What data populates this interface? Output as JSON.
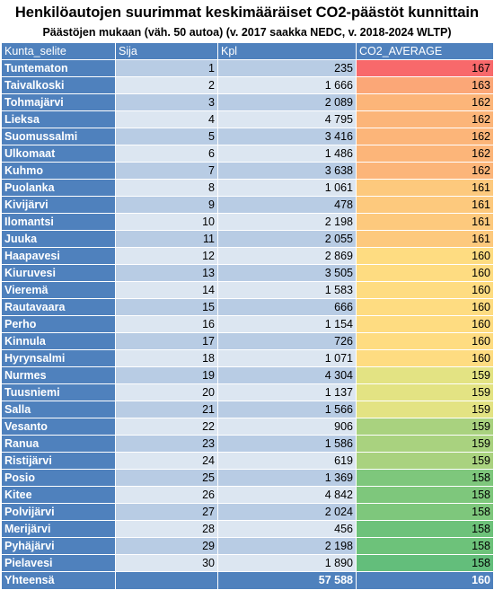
{
  "title": "Henkilöautojen suurimmat keskimääräiset CO2-päästöt kunnittain",
  "subtitle": "Päästöjen mukaan (väh. 50 autoa) (v. 2017 saakka NEDC, v. 2018-2024 WLTP)",
  "columns": [
    "Kunta_selite",
    "Sija",
    "Kpl",
    "CO2_AVERAGE"
  ],
  "colors": {
    "header": "#4f81bd",
    "band_dark": "#b8cce4",
    "band_light": "#dce6f1"
  },
  "rows": [
    {
      "name": "Tuntematon",
      "rank": "1",
      "count": "235",
      "avg": "167",
      "color": "#f8696b"
    },
    {
      "name": "Taivalkoski",
      "rank": "2",
      "count": "1 666",
      "avg": "163",
      "color": "#fba777"
    },
    {
      "name": "Tohmajärvi",
      "rank": "3",
      "count": "2 089",
      "avg": "162",
      "color": "#fcb579"
    },
    {
      "name": "Lieksa",
      "rank": "4",
      "count": "4 795",
      "avg": "162",
      "color": "#fcb579"
    },
    {
      "name": "Suomussalmi",
      "rank": "5",
      "count": "3 416",
      "avg": "162",
      "color": "#fcb579"
    },
    {
      "name": "Ulkomaat",
      "rank": "6",
      "count": "1 486",
      "avg": "162",
      "color": "#fcb579"
    },
    {
      "name": "Kuhmo",
      "rank": "7",
      "count": "3 638",
      "avg": "162",
      "color": "#fcb579"
    },
    {
      "name": "Puolanka",
      "rank": "8",
      "count": "1 061",
      "avg": "161",
      "color": "#fdc97d"
    },
    {
      "name": "Kivijärvi",
      "rank": "9",
      "count": "478",
      "avg": "161",
      "color": "#fdc97d"
    },
    {
      "name": "Ilomantsi",
      "rank": "10",
      "count": "2 198",
      "avg": "161",
      "color": "#fdc97d"
    },
    {
      "name": "Juuka",
      "rank": "11",
      "count": "2 055",
      "avg": "161",
      "color": "#fdc97d"
    },
    {
      "name": "Haapavesi",
      "rank": "12",
      "count": "2 869",
      "avg": "160",
      "color": "#fedc81"
    },
    {
      "name": "Kiuruvesi",
      "rank": "13",
      "count": "3 505",
      "avg": "160",
      "color": "#fedc81"
    },
    {
      "name": "Vieremä",
      "rank": "14",
      "count": "1 583",
      "avg": "160",
      "color": "#fedc81"
    },
    {
      "name": "Rautavaara",
      "rank": "15",
      "count": "666",
      "avg": "160",
      "color": "#fedc81"
    },
    {
      "name": "Perho",
      "rank": "16",
      "count": "1 154",
      "avg": "160",
      "color": "#fedc81"
    },
    {
      "name": "Kinnula",
      "rank": "17",
      "count": "726",
      "avg": "160",
      "color": "#fedc81"
    },
    {
      "name": "Hyrynsalmi",
      "rank": "18",
      "count": "1 071",
      "avg": "160",
      "color": "#fedc81"
    },
    {
      "name": "Nurmes",
      "rank": "19",
      "count": "4 304",
      "avg": "159",
      "color": "#e3e383"
    },
    {
      "name": "Tuusniemi",
      "rank": "20",
      "count": "1 137",
      "avg": "159",
      "color": "#e3e383"
    },
    {
      "name": "Salla",
      "rank": "21",
      "count": "1 566",
      "avg": "159",
      "color": "#e3e383"
    },
    {
      "name": "Vesanto",
      "rank": "22",
      "count": "906",
      "avg": "159",
      "color": "#a9d27f"
    },
    {
      "name": "Ranua",
      "rank": "23",
      "count": "1 586",
      "avg": "159",
      "color": "#a9d27f"
    },
    {
      "name": "Ristijärvi",
      "rank": "24",
      "count": "619",
      "avg": "159",
      "color": "#a9d27f"
    },
    {
      "name": "Posio",
      "rank": "25",
      "count": "1 369",
      "avg": "158",
      "color": "#7ec77c"
    },
    {
      "name": "Kitee",
      "rank": "26",
      "count": "4 842",
      "avg": "158",
      "color": "#7ec77c"
    },
    {
      "name": "Polvijärvi",
      "rank": "27",
      "count": "2 024",
      "avg": "158",
      "color": "#7ec77c"
    },
    {
      "name": "Merijärvi",
      "rank": "28",
      "count": "456",
      "avg": "158",
      "color": "#6dc27a"
    },
    {
      "name": "Pyhäjärvi",
      "rank": "29",
      "count": "2 198",
      "avg": "158",
      "color": "#6dc27a"
    },
    {
      "name": "Pielavesi",
      "rank": "30",
      "count": "1 890",
      "avg": "158",
      "color": "#63be7b"
    }
  ],
  "total": {
    "name": "Yhteensä",
    "rank": "",
    "count": "57 588",
    "avg": "160"
  }
}
